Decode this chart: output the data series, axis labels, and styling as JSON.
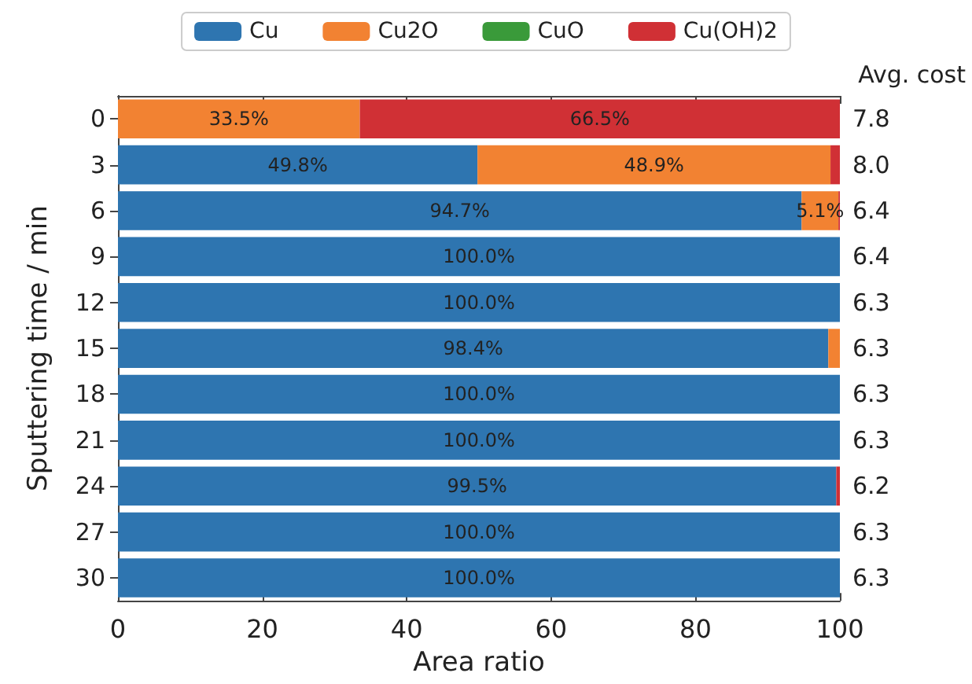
{
  "chart_data": {
    "type": "bar",
    "orientation": "horizontal",
    "stacked": true,
    "categories": [
      "0",
      "3",
      "6",
      "9",
      "12",
      "15",
      "18",
      "21",
      "24",
      "27",
      "30"
    ],
    "y2_categories": [
      "7.8",
      "8.0",
      "6.4",
      "6.4",
      "6.3",
      "6.3",
      "6.3",
      "6.3",
      "6.2",
      "6.3",
      "6.3"
    ],
    "series": [
      {
        "name": "Cu",
        "color": "#2e75b0",
        "values": [
          0,
          49.8,
          94.7,
          100,
          100,
          98.4,
          100,
          100,
          99.5,
          100,
          100
        ],
        "value_labels": [
          null,
          "49.8%",
          "94.7%",
          "100.0%",
          "100.0%",
          "98.4%",
          "100.0%",
          "100.0%",
          "99.5%",
          "100.0%",
          "100.0%"
        ]
      },
      {
        "name": "Cu2O",
        "color": "#f28232",
        "values": [
          33.5,
          48.9,
          5.1,
          0,
          0,
          1.6,
          0,
          0,
          0,
          0,
          0
        ],
        "value_labels": [
          "33.5%",
          "48.9%",
          "5.1%",
          null,
          null,
          null,
          null,
          null,
          null,
          null,
          null
        ]
      },
      {
        "name": "CuO",
        "color": "#3a9a3a",
        "values": [
          0,
          0,
          0,
          0,
          0,
          0,
          0,
          0,
          0,
          0,
          0
        ]
      },
      {
        "name": "Cu(OH)2",
        "color": "#d03035",
        "values": [
          66.5,
          1.3,
          0.2,
          0,
          0,
          0,
          0,
          0,
          0.5,
          0,
          0
        ],
        "value_labels": [
          "66.5%",
          null,
          null,
          null,
          null,
          null,
          null,
          null,
          null,
          null,
          null
        ]
      }
    ],
    "xlim": [
      0,
      100
    ],
    "xticks": [
      0,
      20,
      40,
      60,
      80,
      100
    ],
    "xlabel": "Area ratio",
    "ylabel": "Sputtering time / min",
    "y2label": "Avg. cost",
    "legend": "top",
    "grid": false
  }
}
